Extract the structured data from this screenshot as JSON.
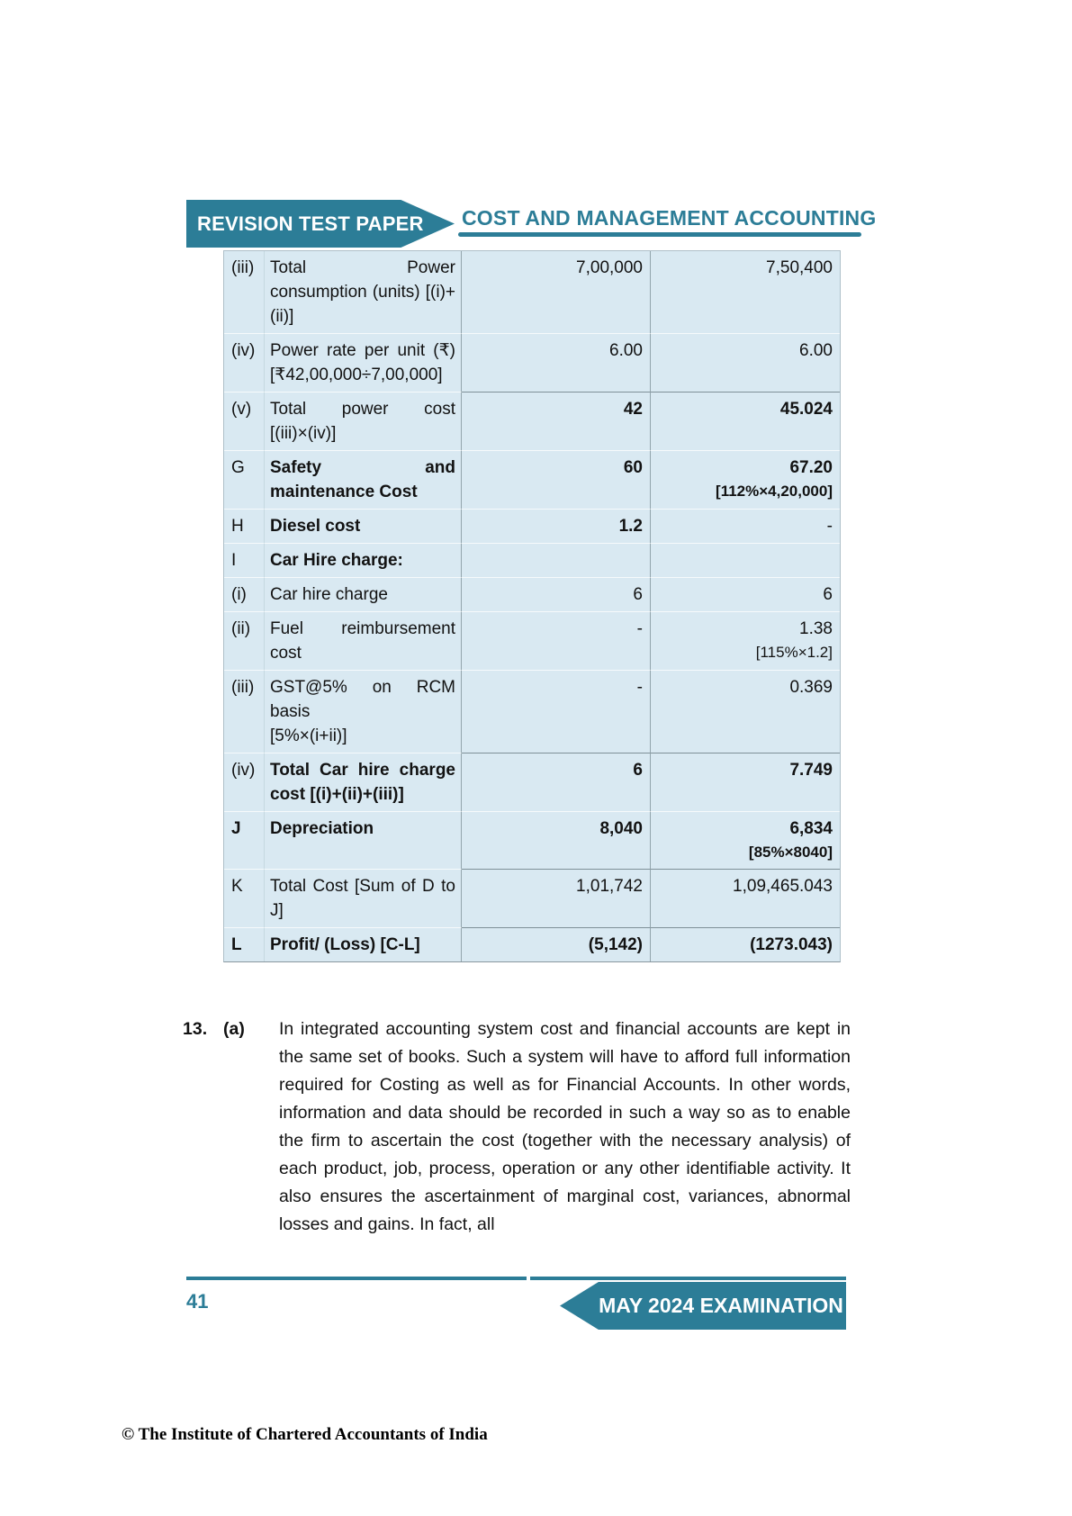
{
  "colors": {
    "teal": "#2c7d97",
    "table_bg": "#d9e9f2"
  },
  "header": {
    "banner_label": "REVISION TEST PAPER",
    "title": "COST AND MANAGEMENT ACCOUNTING"
  },
  "table": {
    "rows": [
      {
        "key": "(iii)",
        "desc": "Total Power consumption (units) [(i)+(ii)]",
        "col1": "7,00,000",
        "col2": "7,50,400"
      },
      {
        "key": "(iv)",
        "desc": "Power rate per unit (₹) [₹42,00,000÷7,00,000]",
        "col1": "6.00",
        "col2": "6.00"
      },
      {
        "key": "(v)",
        "desc": "Total power cost [(iii)×(iv)]",
        "col1": "42",
        "col2": "45.024",
        "b1": true,
        "b2": true,
        "line": true
      },
      {
        "key": "G",
        "desc": "Safety and maintenance Cost",
        "col1": "60",
        "col2": "67.20",
        "note2": "[112%×4,20,000]",
        "kd": true,
        "b1": true,
        "b2": true,
        "noteBold": true
      },
      {
        "key": "H",
        "desc": "Diesel cost",
        "col1": "1.2",
        "col2": "-",
        "kd": true,
        "b1": true
      },
      {
        "key": "I",
        "desc": "Car Hire charge:",
        "col1": "",
        "col2": "",
        "kd": true
      },
      {
        "key": "(i)",
        "desc": "Car hire charge",
        "col1": "6",
        "col2": "6"
      },
      {
        "key": "(ii)",
        "desc": "Fuel reimbursement cost",
        "col1": "-",
        "col2": "1.38",
        "note2": "[115%×1.2]"
      },
      {
        "key": "(iii)",
        "desc": "GST@5% on RCM basis\n[5%×(i+ii)]",
        "col1": "-",
        "col2": "0.369"
      },
      {
        "key": "(iv)",
        "desc": "Total Car hire charge cost [(i)+(ii)+(iii)]",
        "col1": "6",
        "col2": "7.749",
        "kd": true,
        "b1": true,
        "b2": true,
        "line": true
      },
      {
        "key": "J",
        "desc": "Depreciation",
        "col1": "8,040",
        "col2": "6,834",
        "note2": "[85%×8040]",
        "kb": true,
        "kd": true,
        "b1": true,
        "b2": true,
        "noteBold": true
      },
      {
        "key": "K",
        "desc": "Total Cost [Sum of D to J]",
        "col1": "1,01,742",
        "col2": "1,09,465.043",
        "line": true
      },
      {
        "key": "L",
        "desc": "Profit/ (Loss) [C-L]",
        "col1": "(5,142)",
        "col2": "(1273.043)",
        "kb": true,
        "kd": true,
        "b1": true,
        "b2": true,
        "line": true
      }
    ]
  },
  "section": {
    "number": "13.",
    "letter": "(a)",
    "text": "In integrated accounting system cost and financial accounts are kept in the same set of books. Such a system will have to afford full information required for Costing as well as for Financial Accounts. In other words, information and data should be recorded in such a way so as to enable the firm to ascertain the cost (together with the necessary analysis) of each product, job, process, operation or any other identifiable activity. It also ensures the ascertainment of marginal cost, variances, abnormal losses and gains. In fact, all"
  },
  "footer": {
    "page_number": "41",
    "banner_label": "MAY 2024 EXAMINATION"
  },
  "copyright": "© The Institute of Chartered Accountants of India"
}
